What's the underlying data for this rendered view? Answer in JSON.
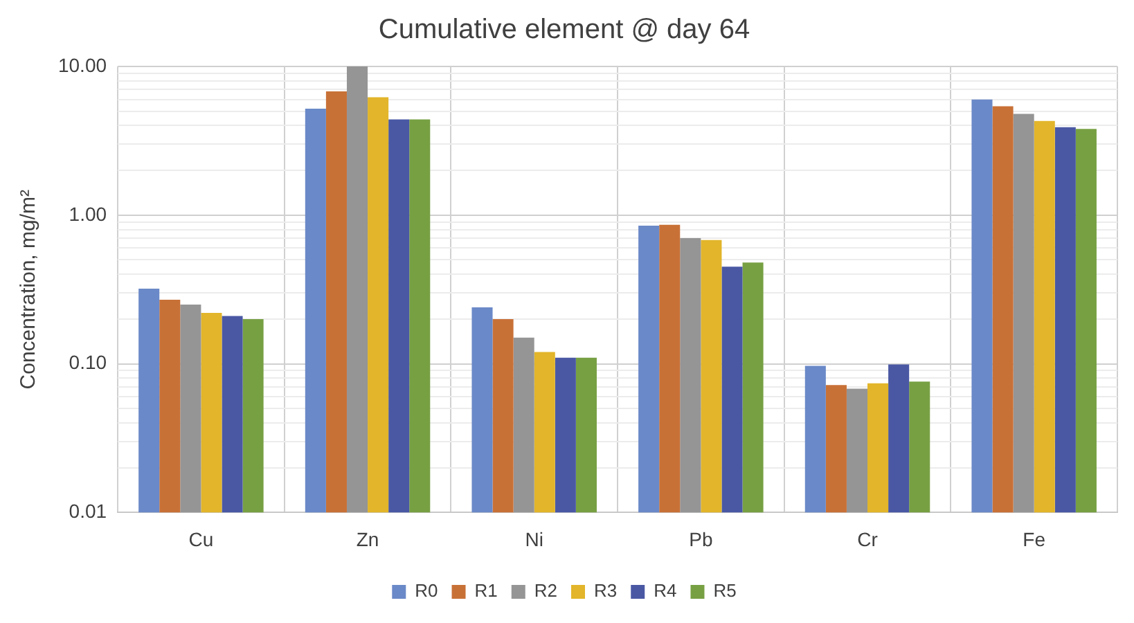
{
  "chart_data": {
    "type": "bar",
    "title": "Cumulative element @ day 64",
    "ylabel": "Concentration, mg/m²",
    "categories": [
      "Cu",
      "Zn",
      "Ni",
      "Pb",
      "Cr",
      "Fe"
    ],
    "series": [
      {
        "name": "R0",
        "color": "#6a89c8",
        "values": [
          0.32,
          5.2,
          0.24,
          0.85,
          0.097,
          6.0
        ]
      },
      {
        "name": "R1",
        "color": "#c87137",
        "values": [
          0.27,
          6.8,
          0.2,
          0.86,
          0.072,
          5.4
        ]
      },
      {
        "name": "R2",
        "color": "#959595",
        "values": [
          0.25,
          10,
          0.15,
          0.7,
          0.068,
          4.8
        ]
      },
      {
        "name": "R3",
        "color": "#e2b52a",
        "values": [
          0.22,
          6.2,
          0.12,
          0.68,
          0.074,
          4.3
        ]
      },
      {
        "name": "R4",
        "color": "#4a58a4",
        "values": [
          0.21,
          4.4,
          0.11,
          0.45,
          0.099,
          3.9
        ]
      },
      {
        "name": "R5",
        "color": "#77a043",
        "values": [
          0.2,
          4.4,
          0.11,
          0.48,
          0.076,
          3.8
        ]
      }
    ],
    "log": true,
    "ylim": [
      0.01,
      10
    ],
    "yticks": [
      {
        "value": 0.01,
        "label": "0.01"
      },
      {
        "value": 0.02,
        "label": null
      },
      {
        "value": 0.03,
        "label": null
      },
      {
        "value": 0.04,
        "label": null
      },
      {
        "value": 0.05,
        "label": null
      },
      {
        "value": 0.06,
        "label": null
      },
      {
        "value": 0.07,
        "label": null
      },
      {
        "value": 0.08,
        "label": null
      },
      {
        "value": 0.09,
        "label": null
      },
      {
        "value": 0.1,
        "label": "0.10"
      },
      {
        "value": 0.2,
        "label": null
      },
      {
        "value": 0.3,
        "label": null
      },
      {
        "value": 0.4,
        "label": null
      },
      {
        "value": 0.5,
        "label": null
      },
      {
        "value": 0.6,
        "label": null
      },
      {
        "value": 0.7,
        "label": null
      },
      {
        "value": 0.8,
        "label": null
      },
      {
        "value": 0.9,
        "label": null
      },
      {
        "value": 1,
        "label": "1.00"
      },
      {
        "value": 2,
        "label": null
      },
      {
        "value": 3,
        "label": null
      },
      {
        "value": 4,
        "label": null
      },
      {
        "value": 5,
        "label": null
      },
      {
        "value": 6,
        "label": null
      },
      {
        "value": 7,
        "label": null
      },
      {
        "value": 8,
        "label": null
      },
      {
        "value": 9,
        "label": null
      },
      {
        "value": 10,
        "label": "10.00"
      }
    ],
    "grid": true,
    "legend": "bottom"
  }
}
